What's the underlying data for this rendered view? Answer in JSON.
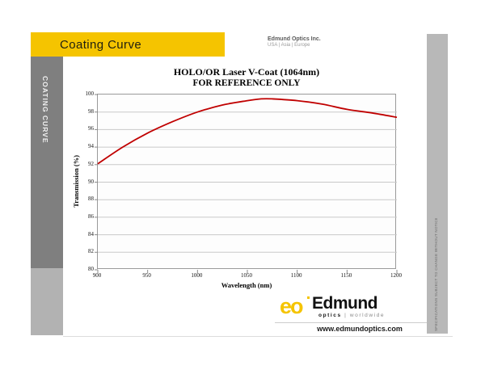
{
  "header": {
    "title": "Coating Curve",
    "company_name": "Edmund Optics Inc.",
    "company_regions": "USA | Asia | Europe"
  },
  "sidebar_label": "COATING CURVE",
  "edge_note": "SPECIFICATIONS SUBJECT TO CHANGE WITHOUT NOTICE",
  "chart_data": {
    "type": "line",
    "title": "HOLO/OR Laser V-Coat (1064nm)",
    "subtitle": "FOR REFERENCE ONLY",
    "xlabel": "Wavelength (nm)",
    "ylabel": "Transmission (%)",
    "xlim": [
      900,
      1200
    ],
    "ylim": [
      80,
      100
    ],
    "x_ticks": [
      900,
      950,
      1000,
      1050,
      1100,
      1150,
      1200
    ],
    "y_ticks": [
      80,
      82,
      84,
      86,
      88,
      90,
      92,
      94,
      96,
      98,
      100
    ],
    "grid": true,
    "legend_position": "none",
    "line_color": "#C00000",
    "series": [
      {
        "name": "Transmission",
        "x": [
          900,
          925,
          950,
          975,
          1000,
          1025,
          1050,
          1064,
          1075,
          1100,
          1125,
          1150,
          1175,
          1200
        ],
        "y": [
          92.1,
          94.0,
          95.6,
          96.9,
          98.0,
          98.8,
          99.3,
          99.5,
          99.5,
          99.3,
          98.9,
          98.3,
          97.9,
          97.4
        ]
      }
    ]
  },
  "footer": {
    "logo_letter_e": "e",
    "logo_letter_o": "o",
    "logo_name": "Edmund",
    "logo_sub_bold": "optics",
    "logo_sub_light": "| worldwide",
    "website": "www.edmundoptics.com"
  },
  "colors": {
    "accent_yellow": "#F5C400",
    "curve_red": "#C00000",
    "sidebar_dark": "#7F7F7F",
    "sidebar_light": "#B2B2B2",
    "edge_strip": "#B8B8B8"
  }
}
